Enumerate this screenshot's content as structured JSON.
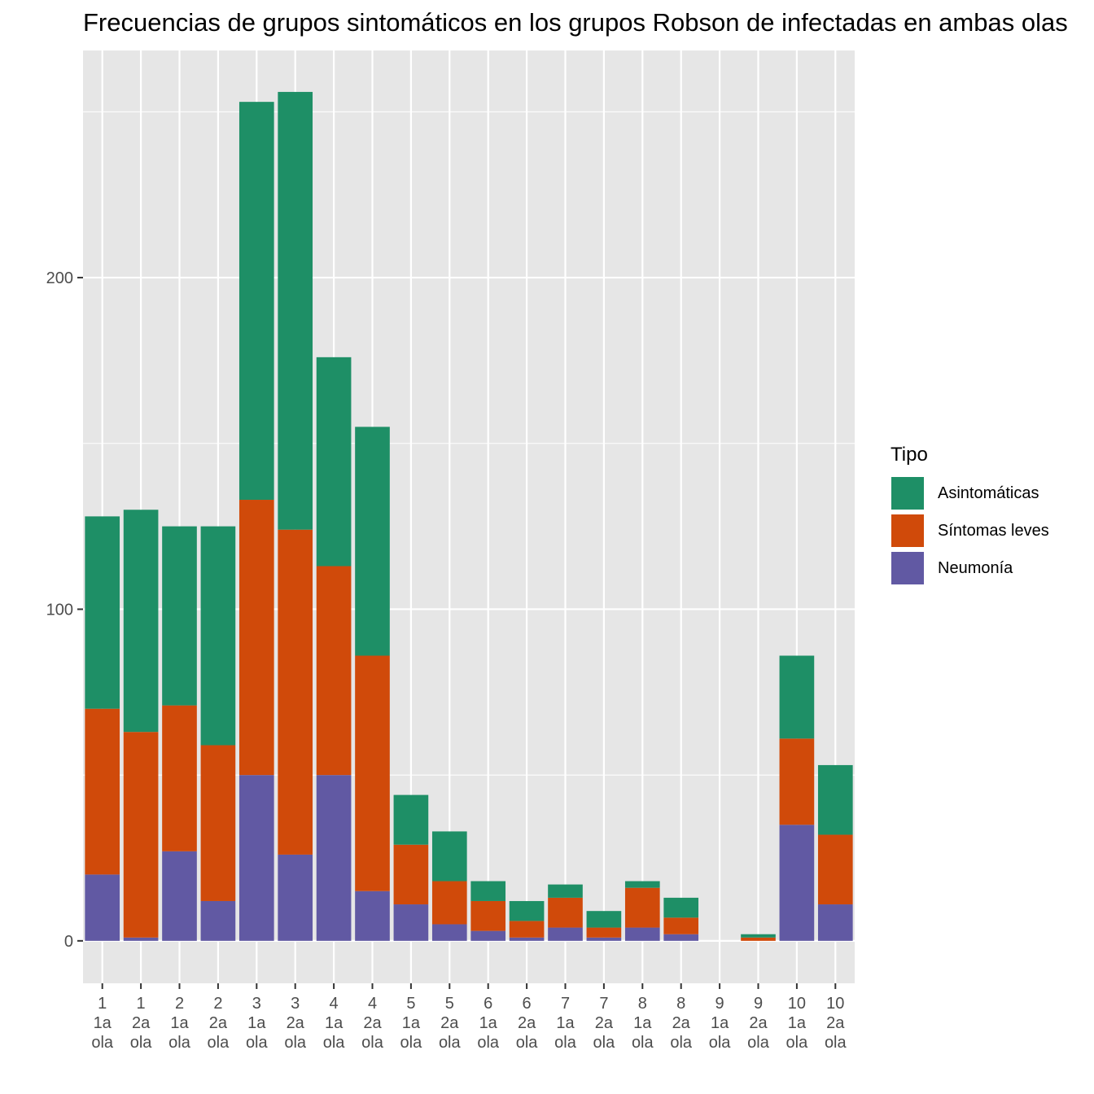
{
  "chart_data": {
    "type": "bar",
    "stacked": true,
    "title": "Frecuencias de grupos sintomáticos en los grupos Robson de  infectadas en ambas olas",
    "xlabel": "",
    "ylabel": "",
    "ylim": [
      -12.8,
      268.5
    ],
    "yticks": [
      0,
      100,
      200
    ],
    "grid": true,
    "legend_position": "right",
    "legend_title": "Tipo",
    "categories": [
      [
        "1",
        "1a",
        "ola"
      ],
      [
        "1",
        "2a",
        "ola"
      ],
      [
        "2",
        "1a",
        "ola"
      ],
      [
        "2",
        "2a",
        "ola"
      ],
      [
        "3",
        "1a",
        "ola"
      ],
      [
        "3",
        "2a",
        "ola"
      ],
      [
        "4",
        "1a",
        "ola"
      ],
      [
        "4",
        "2a",
        "ola"
      ],
      [
        "5",
        "1a",
        "ola"
      ],
      [
        "5",
        "2a",
        "ola"
      ],
      [
        "6",
        "1a",
        "ola"
      ],
      [
        "6",
        "2a",
        "ola"
      ],
      [
        "7",
        "1a",
        "ola"
      ],
      [
        "7",
        "2a",
        "ola"
      ],
      [
        "8",
        "1a",
        "ola"
      ],
      [
        "8",
        "2a",
        "ola"
      ],
      [
        "9",
        "1a",
        "ola"
      ],
      [
        "9",
        "2a",
        "ola"
      ],
      [
        "10",
        "1a",
        "ola"
      ],
      [
        "10",
        "2a",
        "ola"
      ]
    ],
    "series": [
      {
        "name": "Neumonía",
        "color": "#6159a3",
        "values": [
          20,
          1,
          27,
          12,
          50,
          26,
          50,
          15,
          11,
          5,
          3,
          1,
          4,
          1,
          4,
          2,
          0,
          0,
          35,
          11
        ]
      },
      {
        "name": "Síntomas leves",
        "color": "#d04a0a",
        "values": [
          50,
          62,
          44,
          47,
          83,
          98,
          63,
          71,
          18,
          13,
          9,
          5,
          9,
          3,
          12,
          5,
          0,
          1,
          26,
          21
        ]
      },
      {
        "name": "Asintomáticas",
        "color": "#1e8f66",
        "values": [
          58,
          67,
          54,
          66,
          120,
          132,
          63,
          69,
          15,
          15,
          6,
          6,
          4,
          5,
          2,
          6,
          0,
          1,
          25,
          21
        ]
      }
    ],
    "legend_order": [
      "Asintomáticas",
      "Síntomas leves",
      "Neumonía"
    ]
  }
}
